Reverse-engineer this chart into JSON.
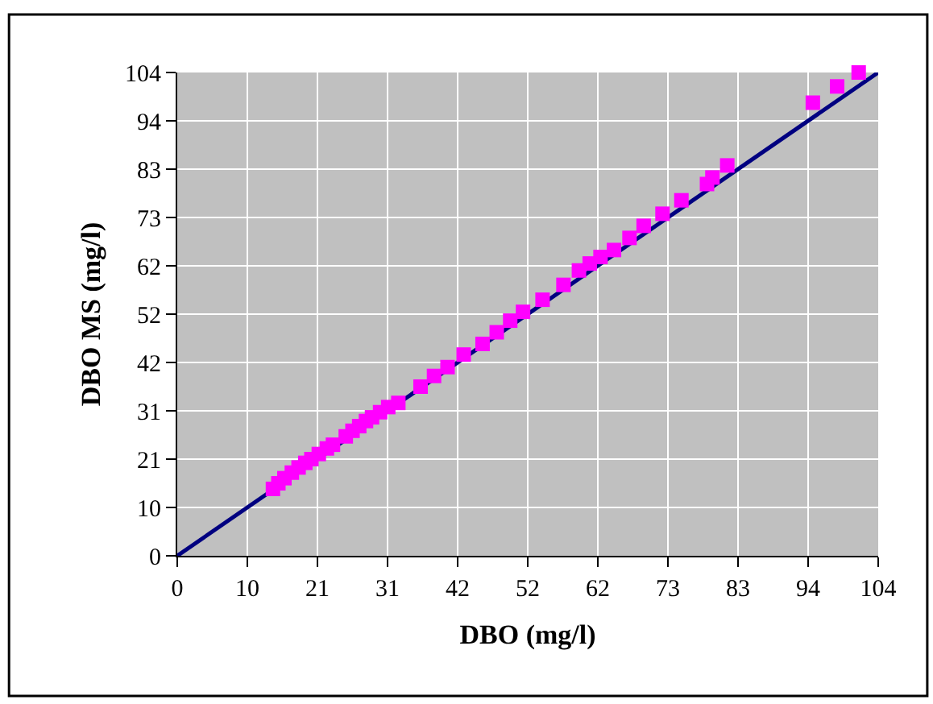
{
  "chart_data": {
    "type": "scatter",
    "xlabel": "DBO (mg/l)",
    "ylabel": "DBO MS (mg/l)",
    "xlim": [
      0,
      104
    ],
    "ylim": [
      0,
      104
    ],
    "xticks": [
      0,
      {
        "value": 10.4,
        "label": "10"
      },
      {
        "value": 20.8,
        "label": "21"
      },
      {
        "value": 31.2,
        "label": "31"
      },
      {
        "value": 41.6,
        "label": "42"
      },
      52,
      {
        "value": 62.4,
        "label": "62"
      },
      {
        "value": 72.8,
        "label": "73"
      },
      {
        "value": 83.2,
        "label": "83"
      },
      {
        "value": 93.6,
        "label": "94"
      },
      104
    ],
    "yticks": [
      0,
      {
        "value": 10.4,
        "label": "10"
      },
      {
        "value": 20.8,
        "label": "21"
      },
      {
        "value": 31.2,
        "label": "31"
      },
      {
        "value": 41.6,
        "label": "42"
      },
      52,
      {
        "value": 62.4,
        "label": "62"
      },
      {
        "value": 72.8,
        "label": "73"
      },
      {
        "value": 83.2,
        "label": "83"
      },
      {
        "value": 93.6,
        "label": "94"
      },
      104
    ],
    "grid": true,
    "legend": false,
    "series": [
      {
        "type": "line",
        "color": "#000080",
        "marker": "none",
        "line_style": "solid",
        "x": [
          0,
          104
        ],
        "values": [
          0,
          104
        ]
      },
      {
        "color": "#ff00ff",
        "marker": "square",
        "x": [
          14.2,
          15.0,
          15.9,
          17.0,
          18.0,
          19.0,
          19.9,
          21.0,
          22.2,
          23.1,
          25.0,
          26.0,
          27.0,
          28.0,
          28.9,
          30.1,
          31.3,
          32.8,
          36.1,
          38.1,
          40.1,
          42.5,
          45.3,
          47.4,
          49.4,
          51.3,
          54.2,
          57.3,
          59.6,
          61.2,
          62.8,
          64.8,
          67.1,
          69.2,
          72.0,
          74.8,
          78.6,
          79.4,
          81.6,
          94.3,
          97.9,
          101.1
        ],
        "values": [
          14.4,
          15.6,
          16.7,
          17.9,
          19.0,
          20.0,
          20.8,
          21.9,
          23.1,
          23.9,
          25.7,
          26.9,
          27.9,
          29.0,
          29.8,
          30.9,
          32.0,
          32.9,
          36.4,
          38.7,
          40.6,
          43.3,
          45.6,
          48.1,
          50.6,
          52.5,
          55.1,
          58.3,
          61.4,
          62.9,
          64.3,
          65.8,
          68.4,
          71.0,
          73.6,
          76.5,
          80.0,
          81.4,
          84.0,
          97.5,
          101.0,
          104
        ]
      }
    ]
  }
}
